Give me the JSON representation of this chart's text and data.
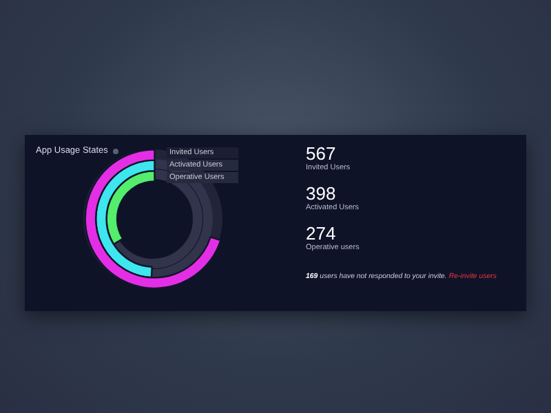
{
  "chart_data": {
    "type": "other",
    "title": "App Usage States",
    "categories": [
      "Invited Users",
      "Activated Users",
      "Operative Users"
    ],
    "values": [
      567,
      398,
      274
    ],
    "data_labels": true,
    "annotations": [
      "Invited Users",
      "Activated Users",
      "Operative users",
      "169 users have not responded to your invite.",
      "Re-invite users"
    ]
  }
}
